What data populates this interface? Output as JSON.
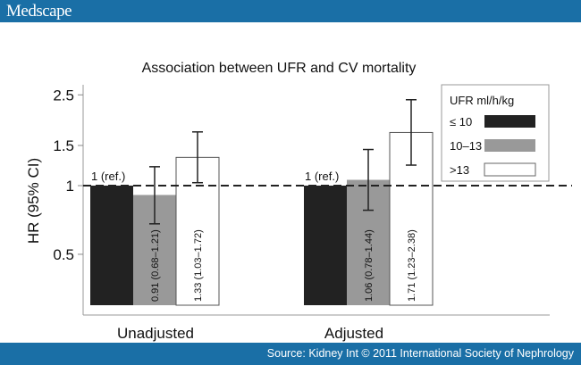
{
  "header": {
    "logo": "Medscape"
  },
  "footer": {
    "source": "Source: Kidney Int © 2011 International Society of Nephrology"
  },
  "colors": {
    "bar": "#1a6fa6",
    "low": "#222222",
    "mid": "#999999",
    "high": "#ffffff"
  },
  "chart_data": {
    "type": "bar",
    "title": "Association between UFR and CV mortality",
    "xlabel": "",
    "ylabel": "HR (95% CI)",
    "yscale": "log",
    "ylim": [
      0.3,
      2.6
    ],
    "yticks": [
      {
        "value": 0.5,
        "label": "0.5"
      },
      {
        "value": 1,
        "label": "1"
      },
      {
        "value": 1.5,
        "label": "1.5"
      },
      {
        "value": 2.5,
        "label": "2.5"
      }
    ],
    "reference_line": 1,
    "categories": [
      "Unadjusted",
      "Adjusted"
    ],
    "legend": {
      "title": "UFR ml/h/kg",
      "position": "top-right",
      "entries": [
        "≤ 10",
        "10–13",
        ">13"
      ]
    },
    "series": [
      {
        "name": "≤ 10",
        "color": "#222222",
        "values": [
          1,
          1
        ],
        "ci_low": [
          null,
          null
        ],
        "ci_high": [
          null,
          null
        ],
        "labels": [
          "1 (ref.)",
          "1 (ref.)"
        ]
      },
      {
        "name": "10–13",
        "color": "#999999",
        "values": [
          0.91,
          1.06
        ],
        "ci_low": [
          0.68,
          0.78
        ],
        "ci_high": [
          1.21,
          1.44
        ],
        "labels": [
          "0.91 (0.68–1.21)",
          "1.06 (0.78–1.44)"
        ]
      },
      {
        "name": ">13",
        "color": "#ffffff",
        "values": [
          1.33,
          1.71
        ],
        "ci_low": [
          1.03,
          1.23
        ],
        "ci_high": [
          1.72,
          2.38
        ],
        "labels": [
          "1.33 (1.03–1.72)",
          "1.71 (1.23–2.38)"
        ]
      }
    ]
  }
}
